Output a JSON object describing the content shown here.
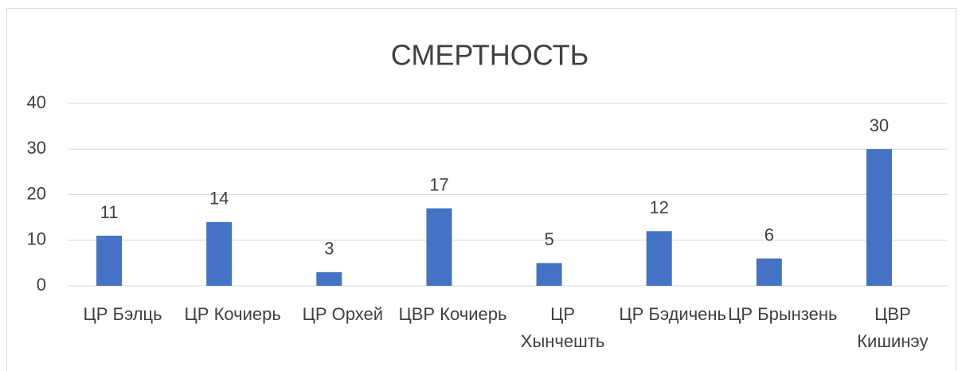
{
  "chart_data": {
    "type": "bar",
    "title": "СМЕРТНОСТЬ",
    "categories": [
      "ЦР Бэлць",
      "ЦР Кочиерь",
      "ЦР Орхей",
      "ЦВР Кочиерь",
      "ЦР Хынчешть",
      "ЦР Бэдичень",
      "ЦР Брынзень",
      "ЦВР Кишинэу"
    ],
    "values": [
      11,
      14,
      3,
      17,
      5,
      12,
      6,
      30
    ],
    "color": "#4472c4",
    "ylim": [
      0,
      40
    ],
    "yticks": [
      0,
      10,
      20,
      30,
      40
    ],
    "grid": true
  }
}
